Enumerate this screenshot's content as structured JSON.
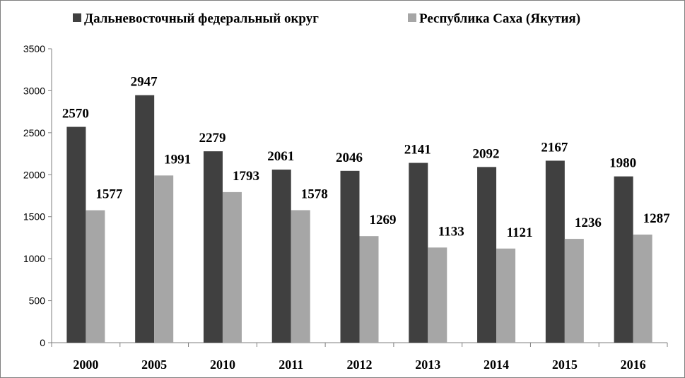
{
  "chart_data": {
    "type": "bar",
    "categories": [
      "2000",
      "2005",
      "2010",
      "2011",
      "2012",
      "2013",
      "2014",
      "2015",
      "2016"
    ],
    "series": [
      {
        "name": "Дальневосточный федеральный округ",
        "color": "#404040",
        "values": [
          2570,
          2947,
          2279,
          2061,
          2046,
          2141,
          2092,
          2167,
          1980
        ]
      },
      {
        "name": "Республика Саха (Якутия)",
        "color": "#a6a6a6",
        "values": [
          1577,
          1991,
          1793,
          1578,
          1269,
          1133,
          1121,
          1236,
          1287
        ]
      }
    ],
    "ylim": [
      0,
      3500
    ],
    "yticks": [
      0,
      500,
      1000,
      1500,
      2000,
      2500,
      3000,
      3500
    ],
    "legend_position": "top",
    "grid": false
  }
}
